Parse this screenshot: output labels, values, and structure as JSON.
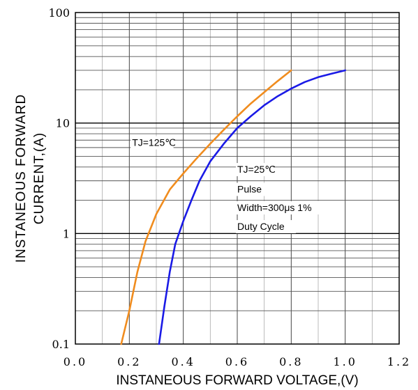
{
  "chart_data": {
    "type": "line",
    "xlabel": "INSTANEOUS FORWARD VOLTAGE,(V)",
    "ylabel_line1": "INSTANEOUS FORWARD",
    "ylabel_line2": "CURRENT,(A)",
    "xlim": [
      0.0,
      1.2
    ],
    "ylim": [
      0.1,
      100
    ],
    "y_scale": "log",
    "grid": true,
    "x_ticks": [
      "0.0",
      "0.2",
      "0.4",
      "0.6",
      "0.8",
      "1.0",
      "1.2"
    ],
    "y_ticks": [
      "0.1",
      "1",
      "10",
      "100"
    ],
    "series": [
      {
        "color": "#f08c1e",
        "x": [
          0.17,
          0.2,
          0.23,
          0.26,
          0.3,
          0.35,
          0.4,
          0.45,
          0.5,
          0.55,
          0.6,
          0.65,
          0.7,
          0.75,
          0.8
        ],
        "y": [
          0.1,
          0.2,
          0.45,
          0.85,
          1.5,
          2.5,
          3.5,
          4.8,
          6.5,
          8.7,
          11.5,
          15,
          19,
          24,
          30
        ]
      },
      {
        "color": "#1a1ae6",
        "x": [
          0.31,
          0.33,
          0.35,
          0.37,
          0.4,
          0.43,
          0.46,
          0.5,
          0.55,
          0.6,
          0.65,
          0.7,
          0.75,
          0.8,
          0.85,
          0.9,
          0.95,
          1.0
        ],
        "y": [
          0.1,
          0.22,
          0.45,
          0.8,
          1.3,
          2.0,
          3.0,
          4.5,
          6.5,
          9.0,
          11.5,
          14.5,
          17.5,
          20.5,
          23.5,
          26,
          28,
          30
        ]
      }
    ],
    "annotations": [
      {
        "text": "TJ=125℃",
        "x": 0.21,
        "y": 6.2
      },
      {
        "text": "TJ=25℃",
        "x": 0.6,
        "y": 3.55
      },
      {
        "text": "Pulse",
        "x": 0.6,
        "y": 2.35
      },
      {
        "text": "Width=300μs 1%",
        "x": 0.6,
        "y": 1.6
      },
      {
        "text": "Duty Cycle",
        "x": 0.6,
        "y": 1.08
      }
    ]
  }
}
